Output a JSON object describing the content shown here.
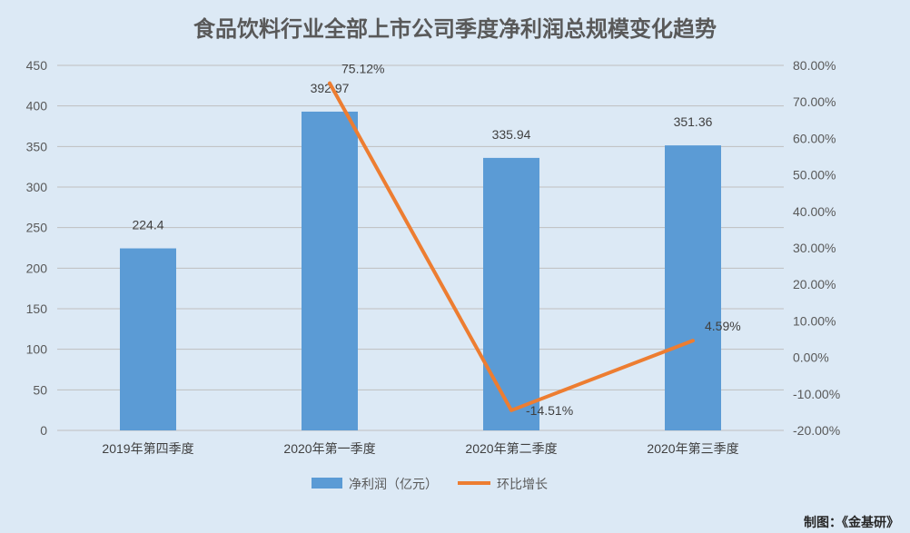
{
  "chart_data": {
    "type": "bar",
    "title": "食品饮料行业全部上市公司季度净利润总规模变化趋势",
    "categories": [
      "2019年第四季度",
      "2020年第一季度",
      "2020年第二季度",
      "2020年第三季度"
    ],
    "series": [
      {
        "name": "净利润（亿元）",
        "type": "bar",
        "axis": "left",
        "values": [
          224.4,
          392.97,
          335.94,
          351.36
        ],
        "labels": [
          "224.4",
          "392.97",
          "335.94",
          "351.36"
        ],
        "color": "#5b9bd5"
      },
      {
        "name": "环比增长",
        "type": "line",
        "axis": "right",
        "values": [
          null,
          75.12,
          -14.51,
          4.59
        ],
        "labels": [
          "",
          "75.12%",
          "-14.51%",
          "4.59%"
        ],
        "color": "#ed7d31"
      }
    ],
    "y_left": {
      "min": 0,
      "max": 450,
      "step": 50,
      "ticks": [
        "0",
        "50",
        "100",
        "150",
        "200",
        "250",
        "300",
        "350",
        "400",
        "450"
      ]
    },
    "y_right": {
      "min": -20,
      "max": 80,
      "step": 10,
      "ticks": [
        "-20.00%",
        "-10.00%",
        "0.00%",
        "10.00%",
        "20.00%",
        "30.00%",
        "40.00%",
        "50.00%",
        "60.00%",
        "70.00%",
        "80.00%"
      ]
    },
    "grid": true,
    "legend_position": "bottom",
    "source": "制图：《金基研》"
  }
}
